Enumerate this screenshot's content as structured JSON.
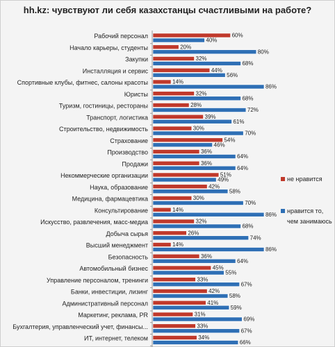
{
  "chart_data": {
    "type": "bar",
    "orientation": "horizontal",
    "title": "hh.kz: чувствуют ли себя казахстанцы счастливыми на работе?",
    "categories": [
      "Рабочий персонал",
      "Начало карьеры, студенты",
      "Закупки",
      "Инсталляция и сервис",
      "Спортивные клубы, фитнес, салоны красоты",
      "Юристы",
      "Туризм, гостиницы, рестораны",
      "Транспорт, логистика",
      "Строительство, недвижимость",
      "Страхование",
      "Производство",
      "Продажи",
      "Некоммерческие организации",
      "Наука, образование",
      "Медицина, фармацевтика",
      "Консультирование",
      "Искусство, развлечения, масс-медиа",
      "Добыча сырья",
      "Высший менеджмент",
      "Безопасность",
      "Автомобильный бизнес",
      "Управление персоналом, тренинги",
      "Банки, инвестиции, лизинг",
      "Административный персонал",
      "Маркетинг, реклама, PR",
      "Бухгалтерия, управленческий учет, финансы...",
      "ИТ, интернет, телеком"
    ],
    "series": [
      {
        "name": "не нравится",
        "color": "#c0392b",
        "values": [
          60,
          20,
          32,
          44,
          14,
          32,
          28,
          39,
          30,
          54,
          36,
          36,
          51,
          42,
          30,
          14,
          32,
          26,
          14,
          36,
          45,
          33,
          42,
          41,
          31,
          33,
          34
        ]
      },
      {
        "name": "нравится то, чем занимаюсь",
        "color": "#2e6fb5",
        "values": [
          40,
          80,
          68,
          56,
          86,
          68,
          72,
          61,
          70,
          46,
          64,
          64,
          49,
          58,
          70,
          86,
          68,
          74,
          86,
          64,
          55,
          67,
          58,
          59,
          69,
          67,
          66
        ]
      }
    ],
    "value_suffix": "%",
    "xlim": [
      0,
      100
    ],
    "grid": false,
    "legend_position": "right"
  }
}
